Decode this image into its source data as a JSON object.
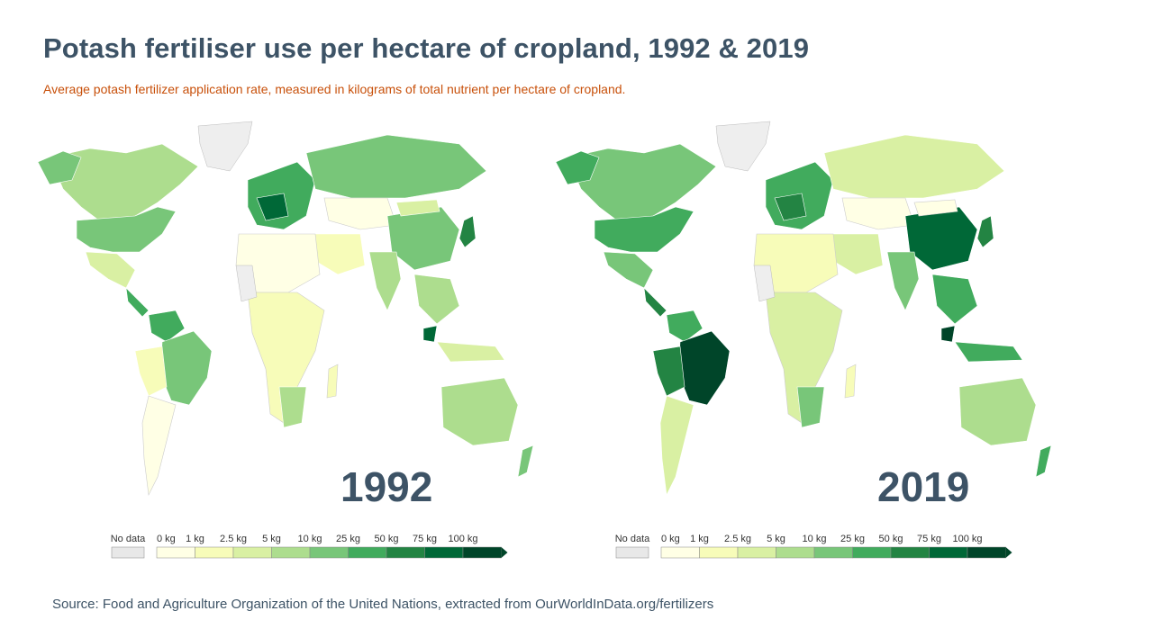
{
  "title": "Potash fertiliser use per hectare of cropland, 1992 & 2019",
  "subtitle": "Average potash fertilizer application rate, measured in kilograms of total nutrient per hectare of cropland.",
  "source": "Source: Food and Agriculture Organization of the United Nations, extracted from OurWorldInData.org/fertilizers",
  "maps": [
    {
      "year": "1992"
    },
    {
      "year": "2019"
    }
  ],
  "legend": {
    "no_data_label": "No data",
    "tick_labels": [
      "0 kg",
      "1 kg",
      "2.5 kg",
      "5 kg",
      "10 kg",
      "25 kg",
      "50 kg",
      "75 kg",
      "100 kg"
    ],
    "colors": [
      "#ffffe5",
      "#f7fcb9",
      "#d9f0a3",
      "#addd8e",
      "#78c679",
      "#41ab5d",
      "#238443",
      "#006837",
      "#004529"
    ],
    "no_data_color": "#e8e8e8"
  }
}
